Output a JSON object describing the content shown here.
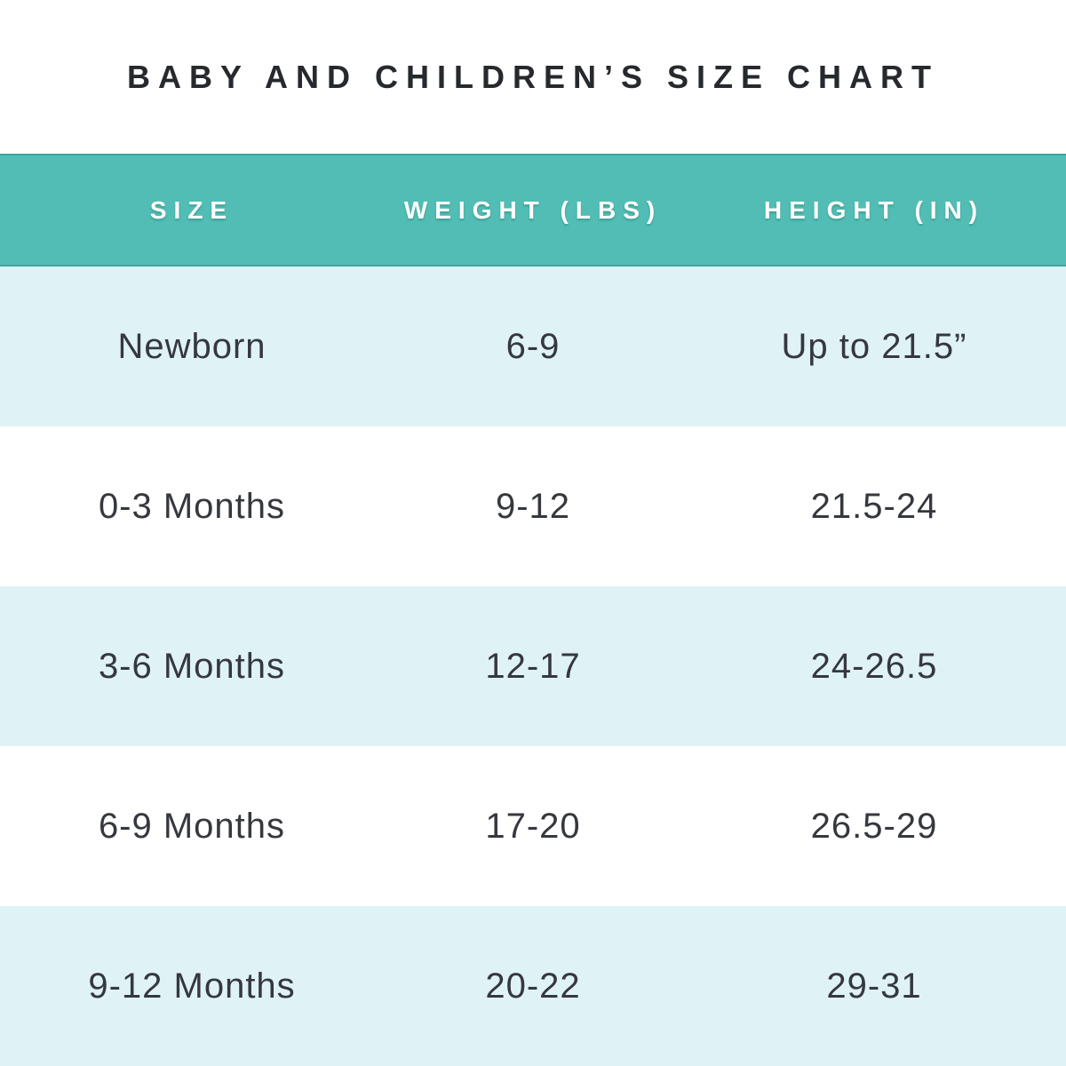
{
  "title": "BABY AND CHILDREN’S SIZE CHART",
  "chart_data": {
    "type": "table",
    "title": "BABY AND CHILDREN’S SIZE CHART",
    "columns": [
      "SIZE",
      "WEIGHT (LBS)",
      "HEIGHT (IN)"
    ],
    "rows": [
      [
        "Newborn",
        "6-9",
        "Up to 21.5”"
      ],
      [
        "0-3 Months",
        "9-12",
        "21.5-24"
      ],
      [
        "3-6 Months",
        "12-17",
        "24-26.5"
      ],
      [
        "6-9 Months",
        "17-20",
        "26.5-29"
      ],
      [
        "9-12 Months",
        "20-22",
        "29-31"
      ]
    ],
    "layout": {
      "alternating_row_shading": true,
      "shaded_rows": [
        0,
        2,
        4
      ],
      "header_position": "top"
    }
  },
  "colors": {
    "header_bg": "#52bdb4",
    "header_border": "#3ca69c",
    "header_text": "#ffffff",
    "row_alt_bg": "#dff3f6",
    "row_bg": "#ffffff",
    "title_color": "#26292d",
    "cell_color": "#35383e"
  }
}
